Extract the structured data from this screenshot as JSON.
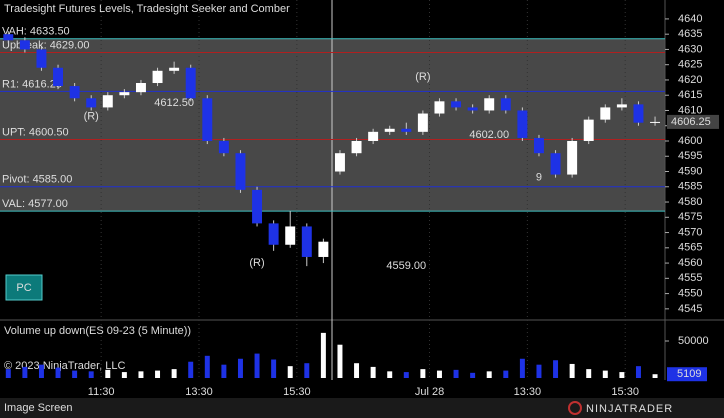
{
  "chart_data": {
    "type": "candlestick",
    "title": "Tradesight Futures Levels, Tradesight Seeker and Comber",
    "open": [
      4635,
      4633,
      4630,
      4624,
      4618,
      4614,
      4611,
      4615,
      4616,
      4619,
      4623,
      4624,
      4614,
      4600,
      4596,
      4584,
      4573,
      4566,
      4572,
      4562,
      4590,
      4596,
      4600,
      4603,
      4604,
      4603,
      4609,
      4613,
      4611,
      4610,
      4614,
      4610,
      4601,
      4596,
      4589,
      4600,
      4607,
      4611,
      4612,
      4606
    ],
    "high": [
      4636,
      4634,
      4631,
      4625,
      4619,
      4615,
      4616,
      4617,
      4620,
      4624,
      4626,
      4625,
      4615,
      4601,
      4597,
      4585,
      4574,
      4577,
      4573,
      4568,
      4597,
      4601,
      4604,
      4605,
      4606,
      4610,
      4614,
      4614,
      4612,
      4615,
      4615,
      4611,
      4602,
      4597,
      4601,
      4608,
      4612,
      4614,
      4613,
      4608
    ],
    "low": [
      4632,
      4629,
      4623,
      4617,
      4613,
      4610,
      4610,
      4614,
      4615,
      4618,
      4622,
      4613,
      4599,
      4595,
      4583,
      4572,
      4564,
      4565,
      4559,
      4560,
      4589,
      4595,
      4599,
      4602,
      4602,
      4602,
      4608,
      4610,
      4609,
      4609,
      4609,
      4600,
      4595,
      4588,
      4588,
      4599,
      4606,
      4610,
      4605,
      4605
    ],
    "close": [
      4633,
      4630,
      4624,
      4618,
      4614,
      4611,
      4615,
      4616,
      4619,
      4623,
      4624,
      4614,
      4600,
      4596,
      4584,
      4573,
      4566,
      4572,
      4562,
      4567,
      4596,
      4600,
      4603,
      4604,
      4603,
      4609,
      4613,
      4611,
      4610,
      4614,
      4610,
      4601,
      4596,
      4589,
      4600,
      4607,
      4611,
      4612,
      4606,
      4606.25
    ],
    "up_color": "#ffffff",
    "down_color": "#1e32e6",
    "xlim": [
      -0.5,
      39.6
    ],
    "xticks": [
      {
        "value": 5.6,
        "label": "11:30"
      },
      {
        "value": 11.5,
        "label": "13:30"
      },
      {
        "value": 17.4,
        "label": "15:30"
      },
      {
        "value": 25.4,
        "label": "Jul 28"
      },
      {
        "value": 31.3,
        "label": "13:30"
      },
      {
        "value": 37.2,
        "label": "15:30"
      }
    ],
    "ylim": [
      4542,
      4646.2
    ],
    "yticks": [
      4545,
      4550,
      4555,
      4560,
      4565,
      4570,
      4575,
      4580,
      4585,
      4590,
      4595,
      4600,
      4605,
      4610,
      4615,
      4620,
      4625,
      4630,
      4635,
      4640
    ],
    "last_price": {
      "value": 4606.25,
      "label": "4606.25"
    },
    "levels": [
      {
        "label": "VAH: 4633.50",
        "value": 4633.5,
        "color": "#40c0c0"
      },
      {
        "label": "Upbreak: 4629.00",
        "value": 4629,
        "color": "#b02020"
      },
      {
        "label": "R1: 4616.25",
        "value": 4616.25,
        "color": "#2030d0"
      },
      {
        "label": "UPT: 4600.50",
        "value": 4600.5,
        "color": "#b02020"
      },
      {
        "label": "Pivot: 4585.00",
        "value": 4585,
        "color": "#2030d0"
      },
      {
        "label": "VAL: 4577.00",
        "value": 4577,
        "color": "#40c0c0"
      }
    ],
    "value_area": {
      "high": 4633.5,
      "low": 4577,
      "color": "#484848"
    },
    "annotations": [
      {
        "text": "(R)",
        "bar": 5,
        "price": 4608,
        "color": "#e02020"
      },
      {
        "text": "(R)",
        "bar": 15,
        "price": 4560,
        "color": "#e02020"
      },
      {
        "text": "(R)",
        "bar": 25,
        "price": 4621,
        "color": "#e02020"
      },
      {
        "text": "4612.50",
        "bar": 10,
        "price": 4612.5,
        "color": "#e02020"
      },
      {
        "text": "4602.00",
        "bar": 29,
        "price": 4602,
        "color": "#e02020"
      },
      {
        "text": "4559.00",
        "bar": 24,
        "price": 4559,
        "color": "#e02020"
      },
      {
        "text": "9",
        "bar": 32,
        "price": 4588,
        "color": "#30d0d0"
      }
    ],
    "button": "PC",
    "volume": {
      "title": "Volume up down(ES 09-23 (5 Minute))",
      "values": [
        12000,
        15000,
        18000,
        14000,
        10000,
        9000,
        11000,
        8000,
        9000,
        10000,
        12000,
        22000,
        30000,
        18000,
        26000,
        33000,
        25000,
        16000,
        20000,
        61000,
        45000,
        20000,
        15000,
        9000,
        8000,
        12000,
        10000,
        11000,
        7000,
        9000,
        10000,
        26000,
        18000,
        24000,
        19000,
        12000,
        10000,
        8000,
        16000,
        5109
      ],
      "ylim": [
        0,
        75700
      ],
      "yticks": [
        50000
      ],
      "last": {
        "value": 5109,
        "label": "5109"
      }
    },
    "copyright": "© 2023 NinjaTrader, LLC",
    "status": "Image Screen",
    "brand": "NINJATRADER"
  }
}
